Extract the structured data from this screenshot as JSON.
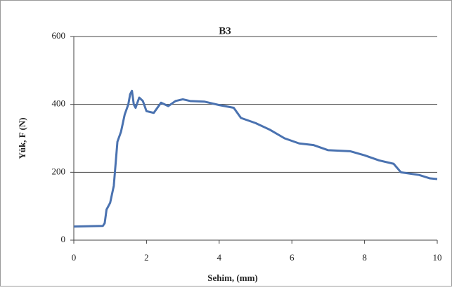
{
  "chart_data": {
    "type": "line",
    "title": "B3",
    "x_label": "Sehim, (mm)",
    "y_label": "Yük, F (N)",
    "x": [
      0,
      0.8,
      0.85,
      0.9,
      1.0,
      1.1,
      1.2,
      1.3,
      1.4,
      1.5,
      1.55,
      1.6,
      1.65,
      1.7,
      1.8,
      1.9,
      2.0,
      2.2,
      2.4,
      2.6,
      2.8,
      3.0,
      3.2,
      3.6,
      4.0,
      4.4,
      4.6,
      5.0,
      5.4,
      5.8,
      6.2,
      6.6,
      7.0,
      7.6,
      8.0,
      8.4,
      8.8,
      9.0,
      9.5,
      9.8,
      10
    ],
    "series": [
      {
        "color": "#4a72b0",
        "values": [
          40,
          42,
          50,
          90,
          110,
          160,
          290,
          320,
          370,
          400,
          430,
          440,
          400,
          390,
          420,
          410,
          380,
          375,
          405,
          395,
          410,
          415,
          410,
          408,
          398,
          390,
          360,
          345,
          325,
          300,
          285,
          280,
          265,
          262,
          250,
          235,
          225,
          200,
          192,
          182,
          180
        ]
      }
    ],
    "xlim": [
      0,
      10
    ],
    "xticks": [
      0,
      2,
      4,
      6,
      8,
      10
    ],
    "ylim": [
      0,
      600
    ],
    "yticks": [
      0,
      200,
      400,
      600
    ],
    "grid": true
  }
}
